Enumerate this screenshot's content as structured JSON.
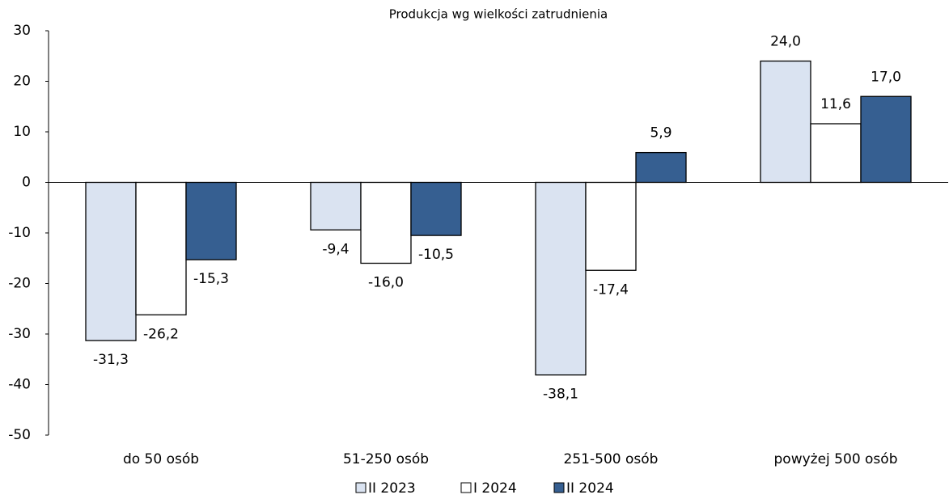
{
  "chart_data": {
    "type": "bar",
    "title": "Produkcja wg wielkości zatrudnienia",
    "categories": [
      "do 50 osób",
      "51-250 osób",
      "251-500 osób",
      "powyżej 500 osób"
    ],
    "series": [
      {
        "name": "II 2023",
        "color": "#dae3f1",
        "values": [
          -31.3,
          -9.4,
          -38.1,
          24.0
        ],
        "value_labels": [
          "-31,3",
          "-9,4",
          "-38,1",
          "24,0"
        ]
      },
      {
        "name": "I 2024",
        "color": "#ffffff",
        "values": [
          -26.2,
          -16.0,
          -17.4,
          11.6
        ],
        "value_labels": [
          "-26,2",
          "-16,0",
          "-17,4",
          "11,6"
        ]
      },
      {
        "name": "II 2024",
        "color": "#365f91",
        "values": [
          -15.3,
          -10.5,
          5.9,
          17.0
        ],
        "value_labels": [
          "-15,3",
          "-10,5",
          "5,9",
          "17,0"
        ]
      }
    ],
    "ylim": [
      -50,
      30
    ],
    "yticks": [
      -50,
      -40,
      -30,
      -20,
      -10,
      0,
      10,
      20,
      30
    ],
    "legend": "bottom"
  }
}
